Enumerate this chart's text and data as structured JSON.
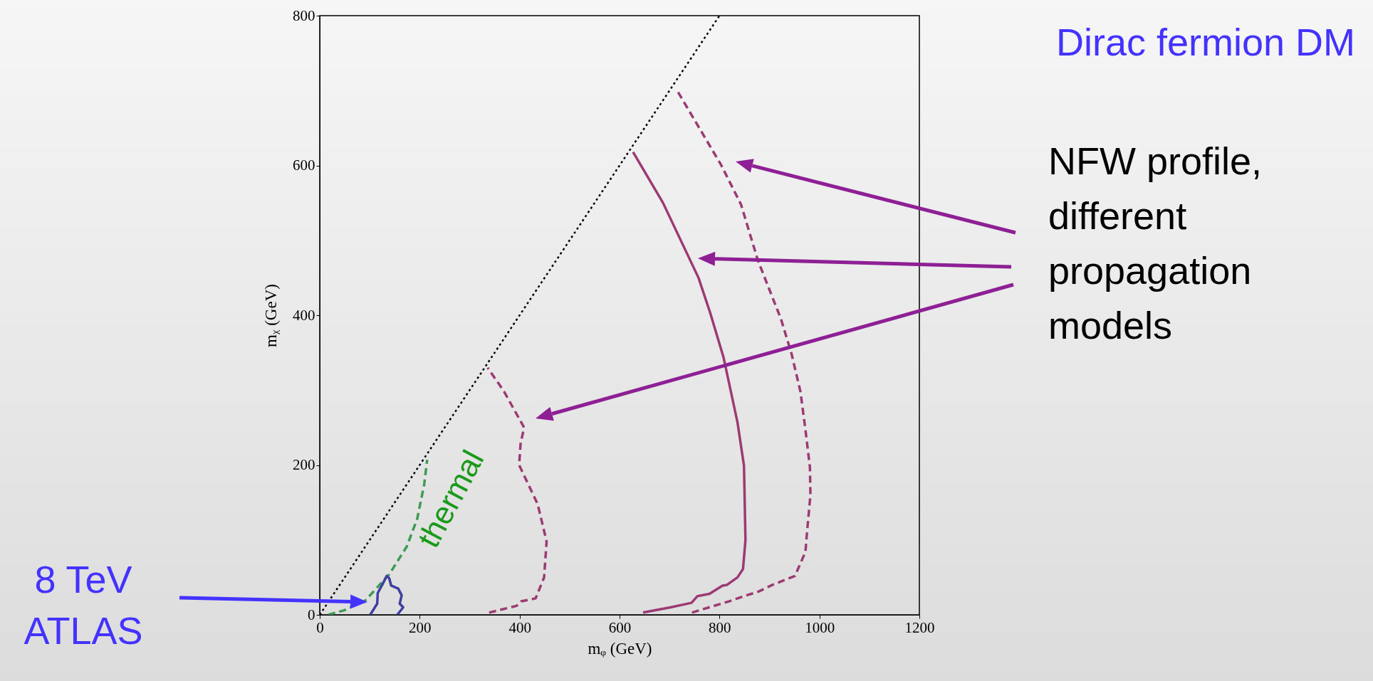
{
  "chart_data": {
    "type": "line",
    "title": "Dirac fermion DM",
    "xlabel": "mᵩ (GeV)",
    "ylabel": "mᵪ (GeV)",
    "xlim": [
      0,
      1200
    ],
    "ylim": [
      0,
      800
    ],
    "xticks": [
      0,
      200,
      400,
      600,
      800,
      1000,
      1200
    ],
    "yticks": [
      0,
      200,
      400,
      600,
      800
    ],
    "grid": false,
    "series": [
      {
        "color": "#000000",
        "line_style": "dotted",
        "x": [
          0,
          800
        ],
        "values": [
          0,
          800
        ]
      },
      {
        "name": "thermal",
        "color": "#3f9a55",
        "line_style": "dashed",
        "x": [
          17,
          49,
          91,
          139,
          174,
          195,
          209,
          215
        ],
        "values": [
          0,
          6,
          19,
          54,
          91,
          128,
          174,
          207
        ]
      },
      {
        "color": "#3f3f9f",
        "line_style": "solid",
        "x": [
          101,
          115,
          116,
          125,
          134,
          139,
          143,
          157,
          164,
          160,
          167,
          155
        ],
        "values": [
          0,
          15,
          29,
          40,
          52,
          49,
          39,
          35,
          26,
          15,
          10,
          0
        ]
      },
      {
        "color": "#9b3a73",
        "line_style": "dashed",
        "x": [
          339,
          394,
          403,
          432,
          449,
          454,
          436,
          399,
          402,
          409,
          369,
          336
        ],
        "values": [
          3,
          12,
          18,
          22,
          50,
          98,
          148,
          200,
          229,
          250,
          298,
          330
        ]
      },
      {
        "color": "#9b3a73",
        "line_style": "solid",
        "x": [
          647,
          702,
          744,
          756,
          780,
          806,
          815,
          836,
          847,
          852,
          849,
          836,
          808,
          781,
          758,
          687,
          627
        ],
        "values": [
          3,
          10,
          16,
          25,
          28,
          39,
          40,
          50,
          61,
          100,
          199,
          257,
          344,
          404,
          450,
          550,
          618
        ]
      },
      {
        "color": "#9b3a73",
        "line_style": "dashed",
        "x": [
          745,
          819,
          854,
          878,
          906,
          951,
          972,
          975,
          982,
          981,
          972,
          962,
          944,
          923,
          877,
          843,
          803,
          717
        ],
        "values": [
          3,
          18,
          26,
          31,
          40,
          52,
          84,
          109,
          160,
          197,
          247,
          298,
          349,
          395,
          473,
          548,
          601,
          698
        ]
      }
    ],
    "annotations": [
      "NFW profile, different propagation models",
      "8 TeV ATLAS"
    ]
  }
}
